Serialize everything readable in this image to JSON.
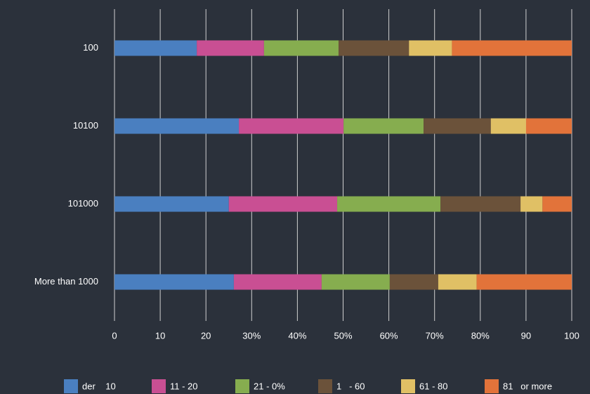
{
  "chart_data": {
    "type": "stacked-bar-horizontal",
    "categories": [
      "100",
      "10100",
      "101000",
      "More than 1000"
    ],
    "series": [
      {
        "name": "der    10",
        "color": "#4a7fc0",
        "values": [
          18,
          27.2,
          25,
          26.1
        ]
      },
      {
        "name": "11 - 20",
        "color": "#c94f93",
        "values": [
          14.7,
          22.9,
          23.7,
          19.2
        ]
      },
      {
        "name": "21 - 0%",
        "color": "#86ad4f",
        "values": [
          16.3,
          17.5,
          22.6,
          14.9
        ]
      },
      {
        "name": "1   - 60",
        "color": "#6b523a",
        "values": [
          15.4,
          14.7,
          17.5,
          10.6
        ]
      },
      {
        "name": "61 - 80",
        "color": "#e0c065",
        "values": [
          9.4,
          7.7,
          4.8,
          8.4
        ]
      },
      {
        "name": "81   or more",
        "color": "#e2733a",
        "values": [
          26.2,
          10,
          6.4,
          20.8
        ]
      }
    ],
    "xlim": [
      0,
      100
    ],
    "xticks": [
      0,
      10,
      20,
      {
        "value": 30,
        "label": "30%"
      },
      {
        "value": 40,
        "label": "40%"
      },
      {
        "value": 50,
        "label": "50%"
      },
      {
        "value": 60,
        "label": "60%"
      },
      {
        "value": 70,
        "label": "70%"
      },
      {
        "value": 80,
        "label": "80%"
      },
      90,
      100
    ],
    "grid": true,
    "legend": "bottom"
  }
}
